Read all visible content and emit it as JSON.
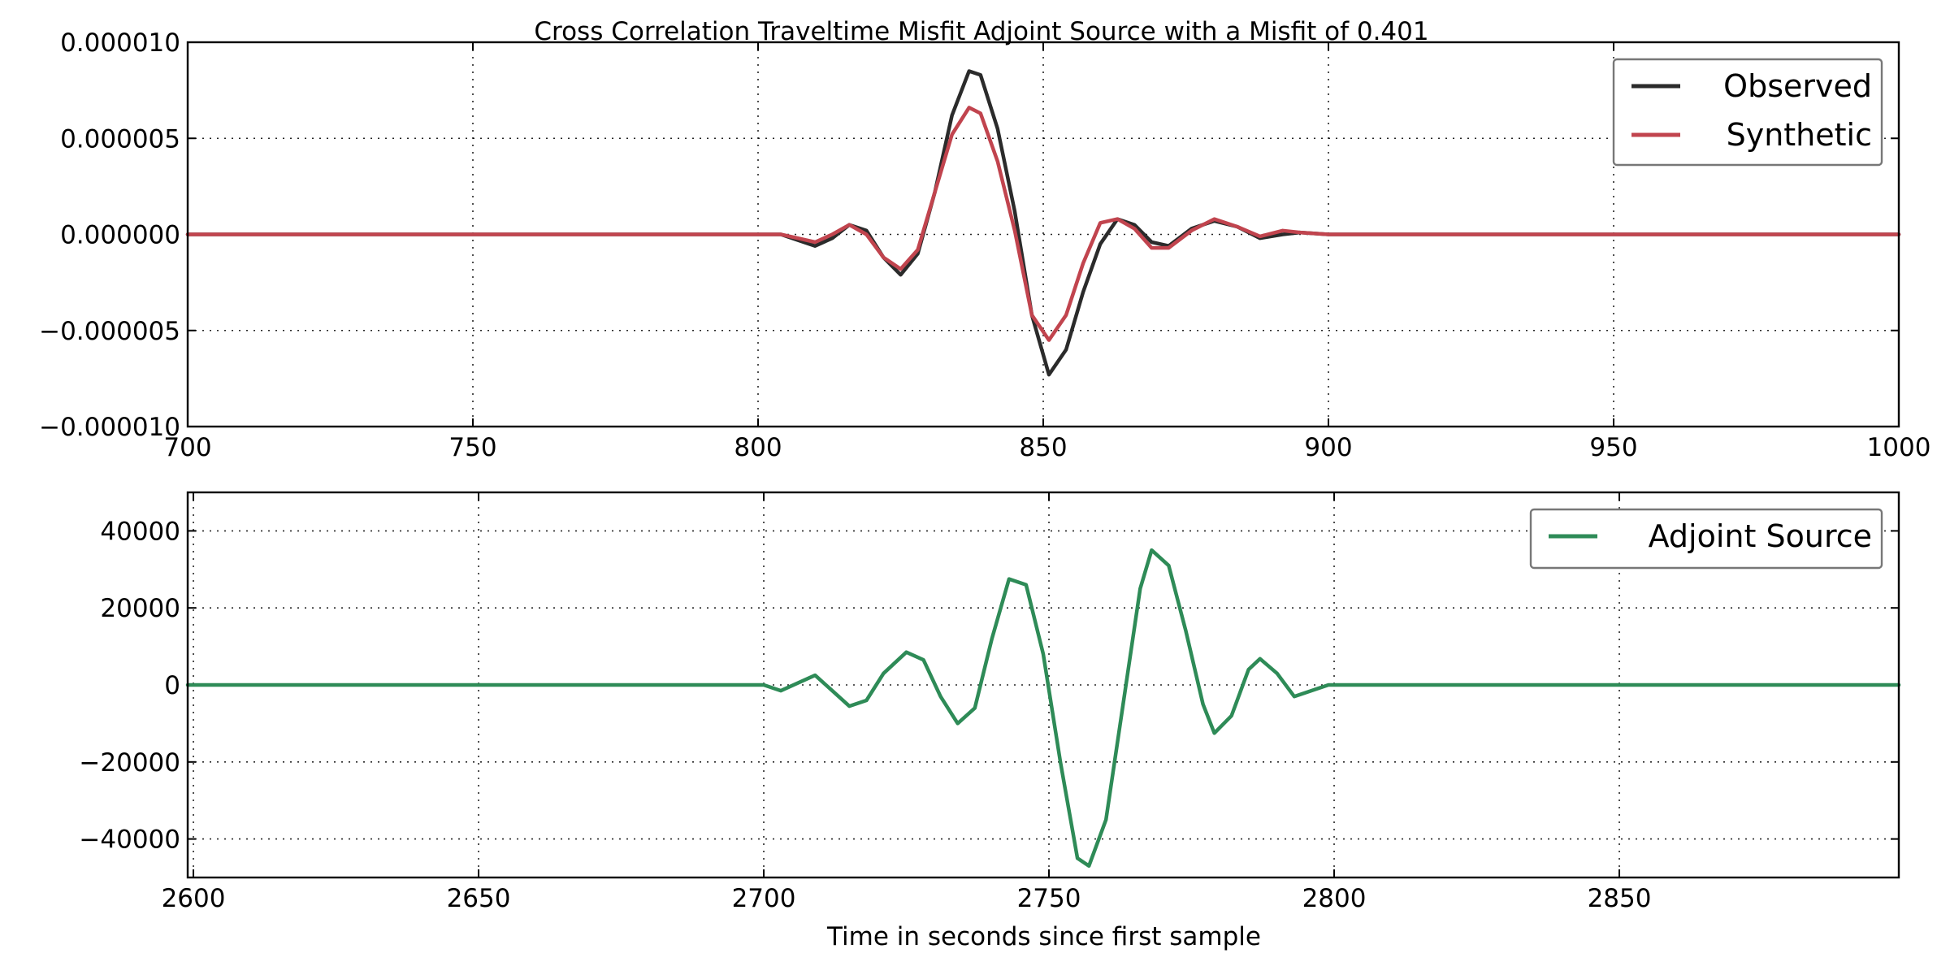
{
  "chart_data": [
    {
      "type": "line",
      "title": "Cross Correlation Traveltime Misfit Adjoint Source with a Misfit of 0.401",
      "xlabel": "",
      "ylabel": "",
      "xlim": [
        700,
        1000
      ],
      "ylim": [
        -1e-05,
        1e-05
      ],
      "xticks": [
        700,
        750,
        800,
        850,
        900,
        950,
        1000
      ],
      "xtick_labels": [
        "700",
        "750",
        "800",
        "850",
        "900",
        "950",
        "1000"
      ],
      "yticks": [
        1e-05,
        5e-06,
        0,
        -5e-06,
        -1e-05
      ],
      "ytick_labels": [
        "0.000010",
        "0.000005",
        "0.000000",
        "−0.000005",
        "−0.000010"
      ],
      "grid": true,
      "legend_position": "top-right",
      "series": [
        {
          "name": "Observed",
          "color": "#2b2b2b",
          "points": [
            [
              700,
              0
            ],
            [
              800,
              0
            ],
            [
              804,
              0
            ],
            [
              807,
              -3e-07
            ],
            [
              810,
              -6e-07
            ],
            [
              813,
              -2e-07
            ],
            [
              816,
              5e-07
            ],
            [
              819,
              2e-07
            ],
            [
              822,
              -1.2e-06
            ],
            [
              825,
              -2.1e-06
            ],
            [
              828,
              -1e-06
            ],
            [
              831,
              2.2e-06
            ],
            [
              834,
              6.2e-06
            ],
            [
              837,
              8.5e-06
            ],
            [
              839,
              8.3e-06
            ],
            [
              842,
              5.5e-06
            ],
            [
              845,
              1.2e-06
            ],
            [
              848,
              -4.2e-06
            ],
            [
              851,
              -7.3e-06
            ],
            [
              854,
              -6e-06
            ],
            [
              857,
              -3e-06
            ],
            [
              860,
              -5e-07
            ],
            [
              863,
              8e-07
            ],
            [
              866,
              5e-07
            ],
            [
              869,
              -4e-07
            ],
            [
              872,
              -6e-07
            ],
            [
              876,
              3e-07
            ],
            [
              880,
              7e-07
            ],
            [
              884,
              4e-07
            ],
            [
              888,
              -2e-07
            ],
            [
              892,
              0
            ],
            [
              895,
              1e-07
            ],
            [
              900,
              0
            ],
            [
              1000,
              0
            ]
          ]
        },
        {
          "name": "Synthetic",
          "color": "#c1444e",
          "points": [
            [
              700,
              0
            ],
            [
              800,
              0
            ],
            [
              804,
              0
            ],
            [
              807,
              -2e-07
            ],
            [
              810,
              -4e-07
            ],
            [
              813,
              0
            ],
            [
              816,
              5e-07
            ],
            [
              819,
              0
            ],
            [
              822,
              -1.2e-06
            ],
            [
              825,
              -1.8e-06
            ],
            [
              828,
              -8e-07
            ],
            [
              831,
              2.2e-06
            ],
            [
              834,
              5.2e-06
            ],
            [
              837,
              6.6e-06
            ],
            [
              839,
              6.3e-06
            ],
            [
              842,
              3.8e-06
            ],
            [
              845,
              2e-07
            ],
            [
              848,
              -4.2e-06
            ],
            [
              851,
              -5.5e-06
            ],
            [
              854,
              -4.2e-06
            ],
            [
              857,
              -1.5e-06
            ],
            [
              860,
              6e-07
            ],
            [
              863,
              8e-07
            ],
            [
              866,
              3e-07
            ],
            [
              869,
              -7e-07
            ],
            [
              872,
              -7e-07
            ],
            [
              876,
              2e-07
            ],
            [
              880,
              8e-07
            ],
            [
              884,
              4e-07
            ],
            [
              888,
              -1e-07
            ],
            [
              892,
              2e-07
            ],
            [
              895,
              1e-07
            ],
            [
              900,
              0
            ],
            [
              1000,
              0
            ]
          ]
        }
      ]
    },
    {
      "type": "line",
      "title": "",
      "xlabel": "Time in seconds since first sample",
      "ylabel": "",
      "xlim": [
        2599,
        2899
      ],
      "ylim": [
        -50000,
        50000
      ],
      "xticks": [
        2600,
        2650,
        2700,
        2750,
        2800,
        2850
      ],
      "xtick_labels": [
        "2600",
        "2650",
        "2700",
        "2750",
        "2800",
        "2850"
      ],
      "yticks": [
        40000,
        20000,
        0,
        -20000,
        -40000
      ],
      "ytick_labels": [
        "40000",
        "20000",
        "0",
        "−20000",
        "−40000"
      ],
      "grid": true,
      "legend_position": "top-right",
      "series": [
        {
          "name": "Adjoint Source",
          "color": "#2e8b57",
          "points": [
            [
              2599,
              0
            ],
            [
              2698,
              0
            ],
            [
              2700,
              0
            ],
            [
              2703,
              -1500
            ],
            [
              2706,
              500
            ],
            [
              2709,
              2500
            ],
            [
              2712,
              -1500
            ],
            [
              2715,
              -5500
            ],
            [
              2718,
              -4000
            ],
            [
              2721,
              3000
            ],
            [
              2725,
              8500
            ],
            [
              2728,
              6500
            ],
            [
              2731,
              -3000
            ],
            [
              2734,
              -10000
            ],
            [
              2737,
              -6000
            ],
            [
              2740,
              12000
            ],
            [
              2743,
              27500
            ],
            [
              2746,
              26000
            ],
            [
              2749,
              8000
            ],
            [
              2752,
              -20000
            ],
            [
              2755,
              -45000
            ],
            [
              2757,
              -47000
            ],
            [
              2760,
              -35000
            ],
            [
              2763,
              -5000
            ],
            [
              2766,
              25000
            ],
            [
              2768,
              35000
            ],
            [
              2771,
              31000
            ],
            [
              2774,
              14000
            ],
            [
              2777,
              -5000
            ],
            [
              2779,
              -12500
            ],
            [
              2782,
              -8000
            ],
            [
              2785,
              4000
            ],
            [
              2787,
              6800
            ],
            [
              2790,
              3000
            ],
            [
              2793,
              -3000
            ],
            [
              2796,
              -1500
            ],
            [
              2799,
              0
            ],
            [
              2899,
              0
            ]
          ]
        }
      ]
    }
  ]
}
